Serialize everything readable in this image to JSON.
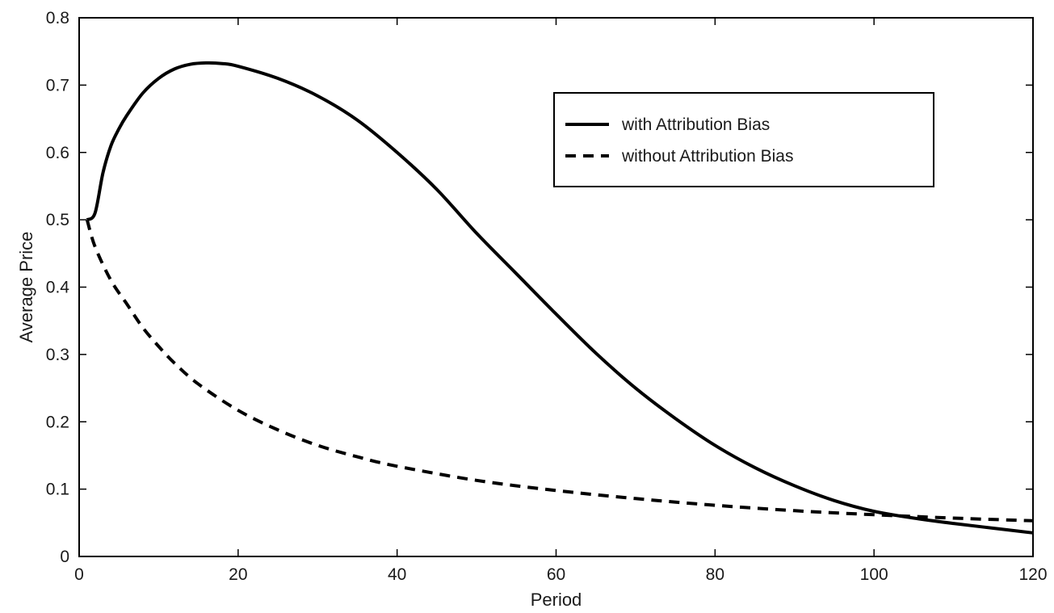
{
  "chart_data": {
    "type": "line",
    "title": "",
    "xlabel": "Period",
    "ylabel": "Average Price",
    "xlim": [
      0,
      120
    ],
    "ylim": [
      0,
      0.8
    ],
    "xticks": [
      0,
      20,
      40,
      60,
      80,
      100,
      120
    ],
    "xtick_labels": [
      "0",
      "20",
      "40",
      "60",
      "80",
      "100",
      "120"
    ],
    "yticks": [
      0,
      0.1,
      0.2,
      0.3,
      0.4,
      0.5,
      0.6,
      0.7,
      0.8
    ],
    "ytick_labels": [
      "0",
      "0.1",
      "0.2",
      "0.3",
      "0.4",
      "0.5",
      "0.6",
      "0.7",
      "0.8"
    ],
    "grid": false,
    "legend_position": "top-right",
    "series": [
      {
        "name": "with Attribution Bias",
        "style": "solid",
        "color": "#000000",
        "x": [
          1,
          2,
          3,
          4,
          5,
          6,
          8,
          10,
          12,
          14,
          16,
          18,
          20,
          25,
          30,
          35,
          40,
          45,
          50,
          55,
          60,
          65,
          70,
          75,
          80,
          85,
          90,
          95,
          100,
          105,
          110,
          115,
          120
        ],
        "y": [
          0.5,
          0.51,
          0.57,
          0.61,
          0.635,
          0.655,
          0.688,
          0.71,
          0.724,
          0.731,
          0.733,
          0.732,
          0.728,
          0.71,
          0.684,
          0.648,
          0.6,
          0.545,
          0.48,
          0.42,
          0.36,
          0.302,
          0.25,
          0.205,
          0.165,
          0.132,
          0.105,
          0.083,
          0.067,
          0.057,
          0.049,
          0.042,
          0.035
        ]
      },
      {
        "name": "without Attribution Bias",
        "style": "dashed",
        "color": "#000000",
        "x": [
          1,
          2,
          4,
          6,
          8,
          10,
          12,
          15,
          20,
          25,
          30,
          35,
          40,
          50,
          60,
          70,
          80,
          90,
          100,
          110,
          120
        ],
        "y": [
          0.5,
          0.46,
          0.41,
          0.375,
          0.34,
          0.312,
          0.287,
          0.256,
          0.217,
          0.188,
          0.165,
          0.148,
          0.134,
          0.113,
          0.098,
          0.086,
          0.076,
          0.068,
          0.062,
          0.057,
          0.053
        ]
      }
    ]
  }
}
